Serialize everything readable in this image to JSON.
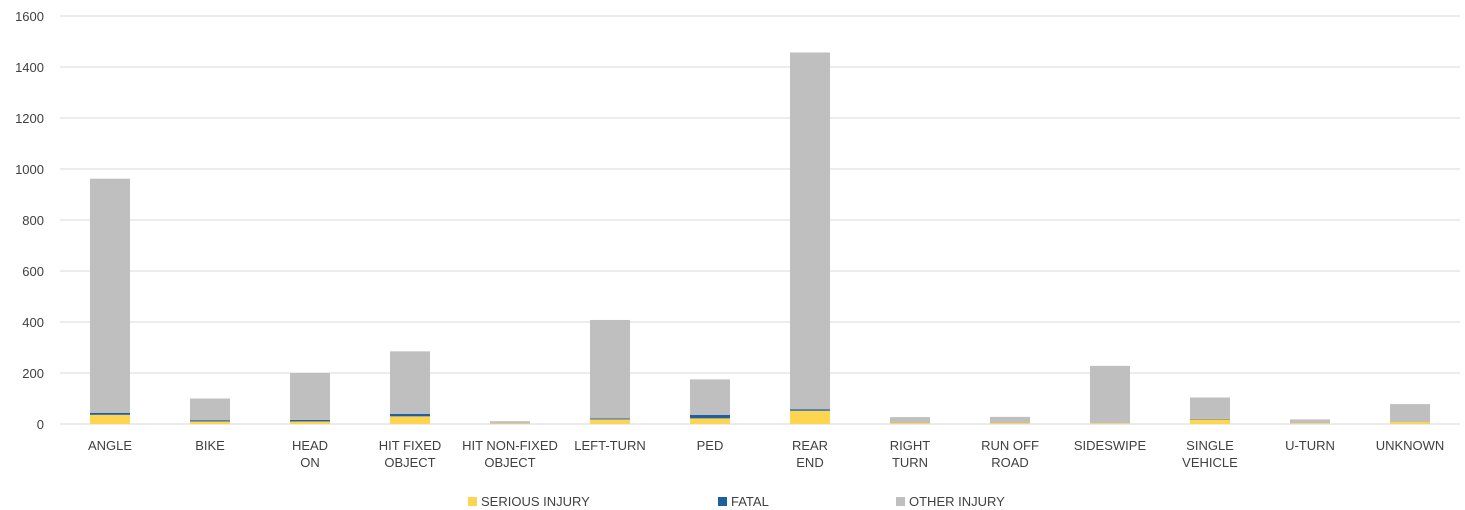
{
  "chart_data": {
    "type": "bar",
    "stacked": true,
    "categories": [
      [
        "ANGLE"
      ],
      [
        "BIKE"
      ],
      [
        "HEAD",
        "ON"
      ],
      [
        "HIT FIXED",
        "OBJECT"
      ],
      [
        "HIT NON-FIXED",
        "OBJECT"
      ],
      [
        "LEFT-TURN"
      ],
      [
        "PED"
      ],
      [
        "REAR",
        "END"
      ],
      [
        "RIGHT",
        "TURN"
      ],
      [
        "RUN OFF",
        "ROAD"
      ],
      [
        "SIDESWIPE"
      ],
      [
        "SINGLE",
        "VEHICLE"
      ],
      [
        "U-TURN"
      ],
      [
        "UNKNOWN"
      ]
    ],
    "series": [
      {
        "name": "SERIOUS INJURY",
        "color": "#ffd54f",
        "values": [
          36,
          10,
          10,
          30,
          2,
          18,
          22,
          52,
          4,
          4,
          3,
          18,
          3,
          8
        ]
      },
      {
        "name": "FATAL",
        "color": "#1f5fa0",
        "values": [
          8,
          5,
          6,
          10,
          0,
          4,
          14,
          6,
          0,
          0,
          0,
          2,
          0,
          0
        ]
      },
      {
        "name": "OTHER INJURY",
        "color": "#bfbfbf",
        "values": [
          918,
          85,
          184,
          245,
          9,
          386,
          139,
          1399,
          23,
          24,
          225,
          84,
          15,
          70
        ]
      }
    ],
    "y_ticks": [
      0,
      200,
      400,
      600,
      800,
      1000,
      1200,
      1400,
      1600
    ],
    "ylim": [
      0,
      1600
    ],
    "grid": true,
    "legend_position": "bottom"
  }
}
